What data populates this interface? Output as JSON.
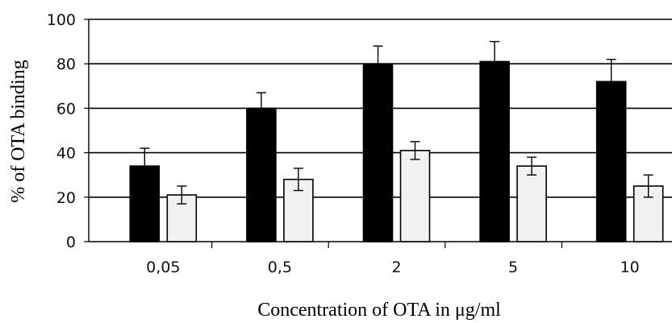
{
  "chart_data": {
    "type": "bar",
    "title": "",
    "xlabel": "Concentration of OTA in μg/ml",
    "ylabel": "% of OTA binding",
    "categories": [
      "0,05",
      "0,5",
      "2",
      "5",
      "10"
    ],
    "series": [
      {
        "values": [
          34,
          60,
          80,
          81,
          72
        ],
        "errors": [
          8,
          7,
          8,
          9,
          10
        ],
        "color": "#000000"
      },
      {
        "values": [
          21,
          28,
          41,
          34,
          25
        ],
        "errors": [
          4,
          5,
          4,
          4,
          5
        ],
        "color": "#f1f1f1"
      }
    ],
    "ylim": [
      0,
      100
    ],
    "yticks": [
      0,
      20,
      40,
      60,
      80,
      100
    ],
    "grid": true,
    "legend": "none"
  }
}
